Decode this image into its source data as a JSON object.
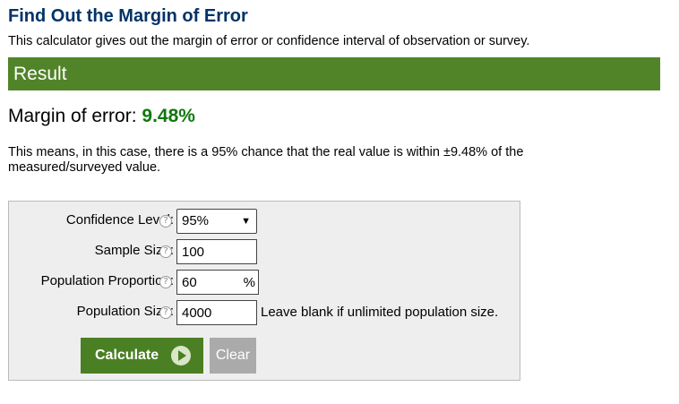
{
  "header": {
    "title": "Find Out the Margin of Error",
    "description": "This calculator gives out the margin of error or confidence interval of observation or survey."
  },
  "result": {
    "section_label": "Result",
    "margin_label": "Margin of error: ",
    "margin_value": "9.48%",
    "explanation": "This means, in this case, there is a 95% chance that the real value is within ±9.48% of the measured/surveyed value."
  },
  "form": {
    "confidence_level": {
      "label": "Confidence Level:",
      "value": "95%"
    },
    "sample_size": {
      "label": "Sample Size:",
      "value": "100"
    },
    "population_proportion": {
      "label": "Population Proportion:",
      "value": "60",
      "unit": "%"
    },
    "population_size": {
      "label": "Population Size:",
      "value": "4000",
      "hint": "Leave blank if unlimited population size."
    },
    "help_glyph": "?",
    "chevron_glyph": "⌄"
  },
  "buttons": {
    "calculate_label": "Calculate",
    "clear_label": "Clear"
  },
  "colors": {
    "title": "#003366",
    "result_bar": "#518428",
    "margin_value": "#11780d",
    "calculate_button": "#4b7f24",
    "clear_button": "#aaaaaa"
  },
  "icons": {
    "help": "help-circle-icon",
    "play": "play-circle-icon",
    "dropdown": "chevron-down-icon"
  }
}
